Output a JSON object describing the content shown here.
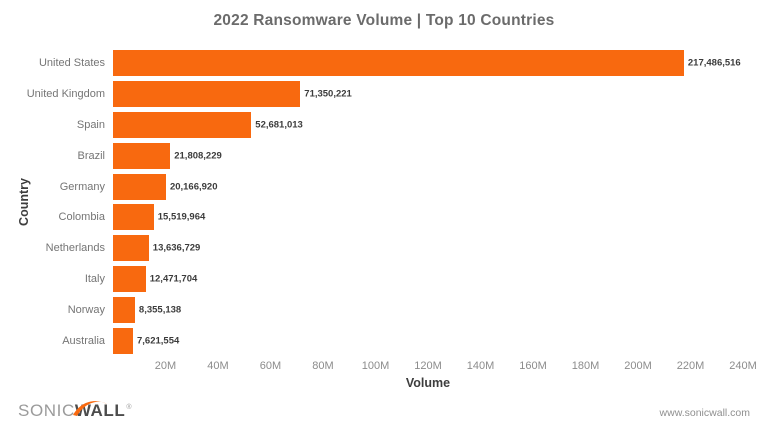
{
  "title": "2022 Ransomware Volume | Top 10 Countries",
  "chart_data": {
    "type": "bar",
    "orientation": "horizontal",
    "title": "2022 Ransomware Volume | Top 10 Countries",
    "xlabel": "Volume",
    "ylabel": "Country",
    "categories": [
      "United States",
      "United Kingdom",
      "Spain",
      "Brazil",
      "Germany",
      "Colombia",
      "Netherlands",
      "Italy",
      "Norway",
      "Australia"
    ],
    "values": [
      217486516,
      71350221,
      52681013,
      21808229,
      20166920,
      15519964,
      13636729,
      12471704,
      8355138,
      7621554
    ],
    "value_labels": [
      "217,486,516",
      "71,350,221",
      "52,681,013",
      "21,808,229",
      "20,166,920",
      "15,519,964",
      "13,636,729",
      "12,471,704",
      "8,355,138",
      "7,621,554"
    ],
    "xlim": [
      0,
      240000000
    ],
    "x_tick_values": [
      20000000,
      40000000,
      60000000,
      80000000,
      100000000,
      120000000,
      140000000,
      160000000,
      180000000,
      200000000,
      220000000,
      240000000
    ],
    "x_tick_labels": [
      "20M",
      "40M",
      "60M",
      "80M",
      "100M",
      "120M",
      "140M",
      "160M",
      "180M",
      "200M",
      "220M",
      "240M"
    ],
    "grid": false,
    "legend": "none",
    "bar_color": "#f8690f"
  },
  "colors": {
    "bar_orange": "#f8690f",
    "title_gray": "#6b6b6b",
    "category_gray": "#757575",
    "value_dark": "#3c3c3c",
    "tick_gray": "#8c8c8c",
    "axis_title_dark": "#3d3d3d",
    "background": "#ffffff"
  },
  "footer": {
    "logo_part1": "SONIC",
    "logo_part2": "WALL",
    "logo_mark": "®",
    "website": "www.sonicwall.com"
  }
}
